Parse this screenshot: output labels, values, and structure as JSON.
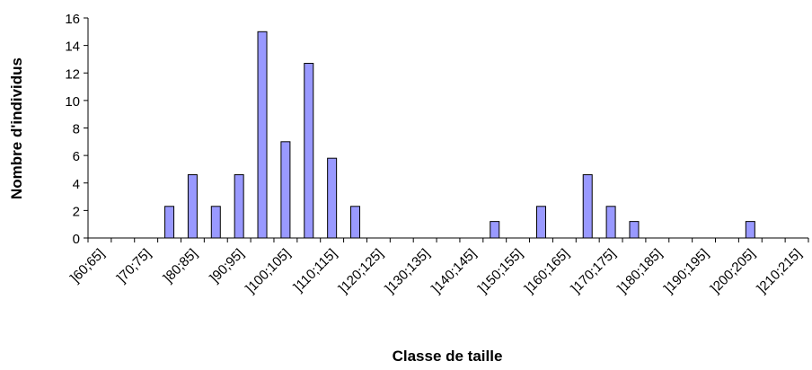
{
  "chart_data": {
    "type": "bar",
    "x_label": "Classe de taille",
    "y_label": "Nombre d'individus",
    "categories": [
      "]60;65]",
      null,
      "]70;75]",
      null,
      "]80;85]",
      null,
      "]90;95]",
      null,
      "]100;105]",
      null,
      "]110;115]",
      null,
      "]120;125]",
      null,
      "]130;135]",
      null,
      "]140;145]",
      null,
      "]150;155]",
      null,
      "]160;165]",
      null,
      "]170;175]",
      null,
      "]180;185]",
      null,
      "]190;195]",
      null,
      "]200;205]",
      null,
      "]210;215]"
    ],
    "values": [
      0,
      0,
      0,
      2.3,
      4.6,
      2.3,
      4.6,
      15,
      7,
      12.7,
      5.8,
      2.3,
      0,
      0,
      0,
      0,
      0,
      1.2,
      0,
      2.3,
      0,
      4.6,
      2.3,
      1.2,
      0,
      0,
      0,
      0,
      1.2,
      0,
      0
    ],
    "color": "#9999ff",
    "ylim": [
      0,
      16
    ],
    "yticks": [
      0,
      2,
      4,
      6,
      8,
      10,
      12,
      14,
      16
    ],
    "grid": false
  }
}
